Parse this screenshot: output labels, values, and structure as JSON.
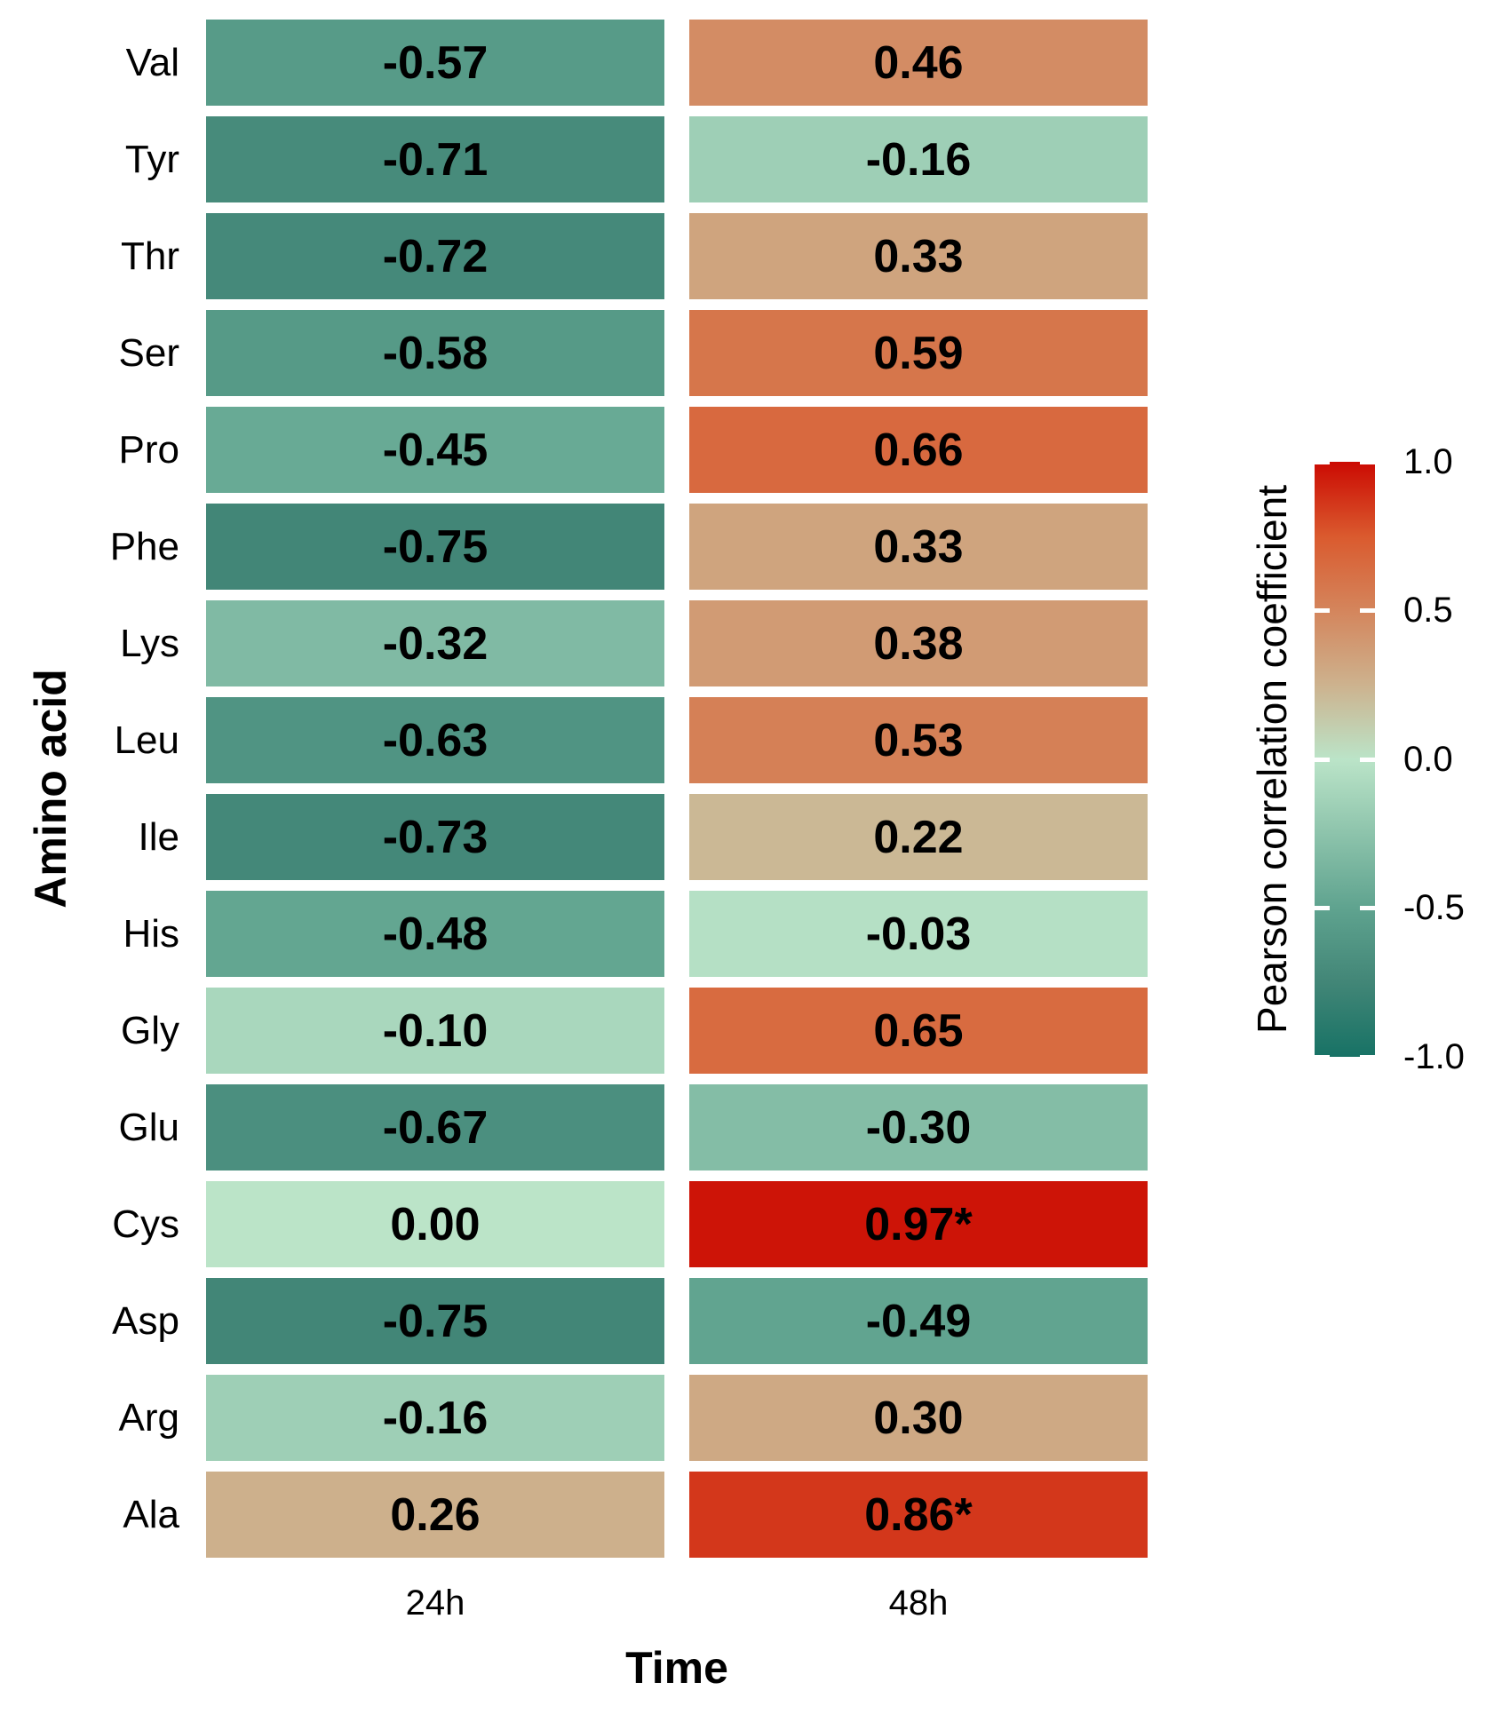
{
  "figure": {
    "background_color": "#ffffff",
    "text_color": "#000000"
  },
  "chart_data": {
    "type": "heatmap",
    "title": "",
    "xlabel": "Time",
    "ylabel": "Amino acid",
    "x_categories": [
      "24h",
      "48h"
    ],
    "y_categories": [
      "Val",
      "Tyr",
      "Thr",
      "Ser",
      "Pro",
      "Phe",
      "Lys",
      "Leu",
      "Ile",
      "His",
      "Gly",
      "Glu",
      "Cys",
      "Asp",
      "Arg",
      "Ala"
    ],
    "rows": [
      {
        "amino_acid": "Val",
        "cells": [
          {
            "label": "-0.57",
            "value": -0.57
          },
          {
            "label": "0.46",
            "value": 0.46
          }
        ]
      },
      {
        "amino_acid": "Tyr",
        "cells": [
          {
            "label": "-0.71",
            "value": -0.71
          },
          {
            "label": "-0.16",
            "value": -0.16
          }
        ]
      },
      {
        "amino_acid": "Thr",
        "cells": [
          {
            "label": "-0.72",
            "value": -0.72
          },
          {
            "label": "0.33",
            "value": 0.33
          }
        ]
      },
      {
        "amino_acid": "Ser",
        "cells": [
          {
            "label": "-0.58",
            "value": -0.58
          },
          {
            "label": "0.59",
            "value": 0.59
          }
        ]
      },
      {
        "amino_acid": "Pro",
        "cells": [
          {
            "label": "-0.45",
            "value": -0.45
          },
          {
            "label": "0.66",
            "value": 0.66
          }
        ]
      },
      {
        "amino_acid": "Phe",
        "cells": [
          {
            "label": "-0.75",
            "value": -0.75
          },
          {
            "label": "0.33",
            "value": 0.33
          }
        ]
      },
      {
        "amino_acid": "Lys",
        "cells": [
          {
            "label": "-0.32",
            "value": -0.32
          },
          {
            "label": "0.38",
            "value": 0.38
          }
        ]
      },
      {
        "amino_acid": "Leu",
        "cells": [
          {
            "label": "-0.63",
            "value": -0.63
          },
          {
            "label": "0.53",
            "value": 0.53
          }
        ]
      },
      {
        "amino_acid": "Ile",
        "cells": [
          {
            "label": "-0.73",
            "value": -0.73
          },
          {
            "label": "0.22",
            "value": 0.22
          }
        ]
      },
      {
        "amino_acid": "His",
        "cells": [
          {
            "label": "-0.48",
            "value": -0.48
          },
          {
            "label": "-0.03",
            "value": -0.03
          }
        ]
      },
      {
        "amino_acid": "Gly",
        "cells": [
          {
            "label": "-0.10",
            "value": -0.1
          },
          {
            "label": "0.65",
            "value": 0.65
          }
        ]
      },
      {
        "amino_acid": "Glu",
        "cells": [
          {
            "label": "-0.67",
            "value": -0.67
          },
          {
            "label": "-0.30",
            "value": -0.3
          }
        ]
      },
      {
        "amino_acid": "Cys",
        "cells": [
          {
            "label": "0.00",
            "value": 0.0
          },
          {
            "label": "0.97*",
            "value": 0.97
          }
        ]
      },
      {
        "amino_acid": "Asp",
        "cells": [
          {
            "label": "-0.75",
            "value": -0.75
          },
          {
            "label": "-0.49",
            "value": -0.49
          }
        ]
      },
      {
        "amino_acid": "Arg",
        "cells": [
          {
            "label": "-0.16",
            "value": -0.16
          },
          {
            "label": "0.30",
            "value": 0.3
          }
        ]
      },
      {
        "amino_acid": "Ala",
        "cells": [
          {
            "label": "0.26",
            "value": 0.26
          },
          {
            "label": "0.86*",
            "value": 0.86
          }
        ]
      }
    ],
    "legend": {
      "title": "Pearson correlation coefficient",
      "ticks": [
        "1.0",
        "0.5",
        "0.0",
        "-0.5",
        "-1.0"
      ],
      "tick_values": [
        1.0,
        0.5,
        0.0,
        -0.5,
        -1.0
      ],
      "range": [
        -1.0,
        1.0
      ]
    },
    "colormap": [
      [
        -1.0,
        "#177265"
      ],
      [
        -0.75,
        "#428677"
      ],
      [
        -0.5,
        "#5fa38f"
      ],
      [
        0.0,
        "#bbe4c8"
      ],
      [
        0.25,
        "#cdb28e"
      ],
      [
        0.5,
        "#d4855c"
      ],
      [
        0.75,
        "#da5a2e"
      ],
      [
        1.0,
        "#cb0a02"
      ]
    ],
    "layout": {
      "grid": "off",
      "legend_position": "right",
      "cell_text": "bold",
      "gap_color": "#ffffff"
    }
  }
}
